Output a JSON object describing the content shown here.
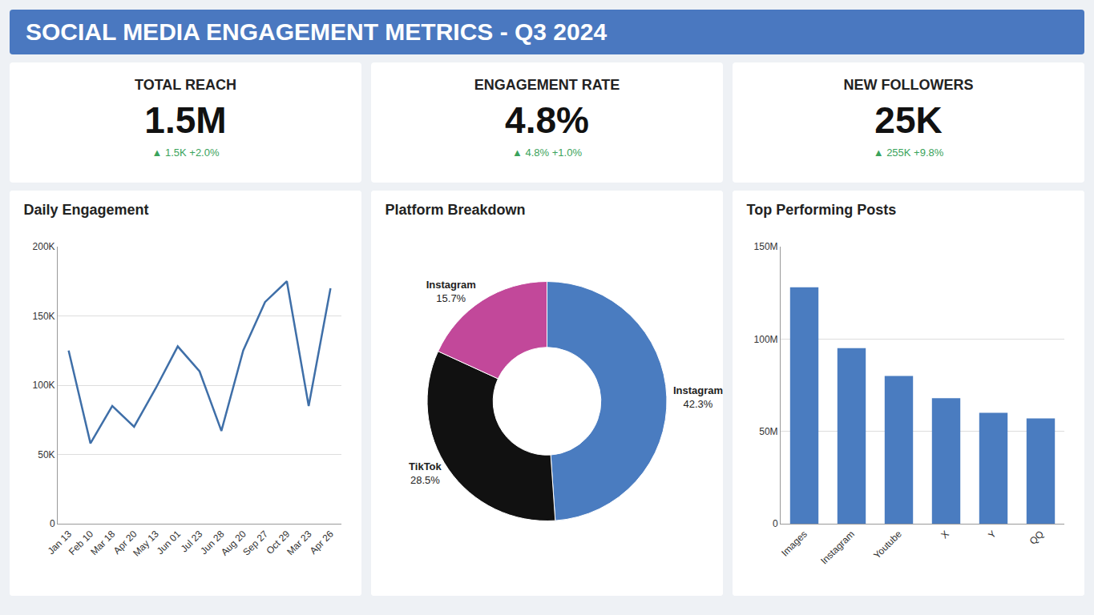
{
  "title": "SOCIAL MEDIA ENGAGEMENT METRICS - Q3 2024",
  "kpis": [
    {
      "label": "TOTAL REACH",
      "value": "1.5M",
      "delta": "▲ 1.5K +2.0%"
    },
    {
      "label": "ENGAGEMENT RATE",
      "value": "4.8%",
      "delta": "▲ 4.8% +1.0%"
    },
    {
      "label": "NEW FOLLOWERS",
      "value": "25K",
      "delta": "▲ 255K +9.8%"
    }
  ],
  "chart_data": [
    {
      "type": "line",
      "title": "Daily Engagement",
      "categories": [
        "Jan 13",
        "Feb 10",
        "Mar 18",
        "Apr 20",
        "May 13",
        "Jun 01",
        "Jul 23",
        "Jun 28",
        "Aug 20",
        "Sep 27",
        "Oct 29",
        "Mar 23",
        "Apr 26"
      ],
      "values": [
        125000,
        58000,
        85000,
        70000,
        98000,
        128000,
        110000,
        67000,
        125000,
        160000,
        175000,
        85000,
        170000
      ],
      "color": "#3f6fa8",
      "ylim": [
        0,
        200000
      ],
      "yticks": [
        0,
        {
          "value": 50000,
          "label": "50K"
        },
        {
          "value": 100000,
          "label": "100K"
        },
        {
          "value": 150000,
          "label": "150K"
        },
        {
          "value": 200000,
          "label": "200K"
        }
      ],
      "grid": true
    },
    {
      "type": "donut",
      "title": "Platform Breakdown",
      "categories": [
        "Instagram",
        "TikTok",
        "Instagram"
      ],
      "values": [
        42.3,
        28.5,
        15.7
      ],
      "value_labels": [
        "42.3%",
        "28.5%",
        "15.7%"
      ],
      "colors": [
        "#4a7cc0",
        "#111111",
        "#c2489a"
      ],
      "data_labels": true
    },
    {
      "type": "bar",
      "title": "Top Performing Posts",
      "categories": [
        "Images",
        "Instagram",
        "Youtube",
        "X",
        "Y",
        "QQ"
      ],
      "values": [
        128000000,
        95000000,
        80000000,
        68000000,
        60000000,
        57000000
      ],
      "color": "#4a7cc0",
      "ylim": [
        0,
        150000000
      ],
      "yticks": [
        0,
        {
          "value": 50000000,
          "label": "50M"
        },
        {
          "value": 100000000,
          "label": "100M"
        },
        {
          "value": 150000000,
          "label": "150M"
        }
      ],
      "grid": true
    }
  ]
}
